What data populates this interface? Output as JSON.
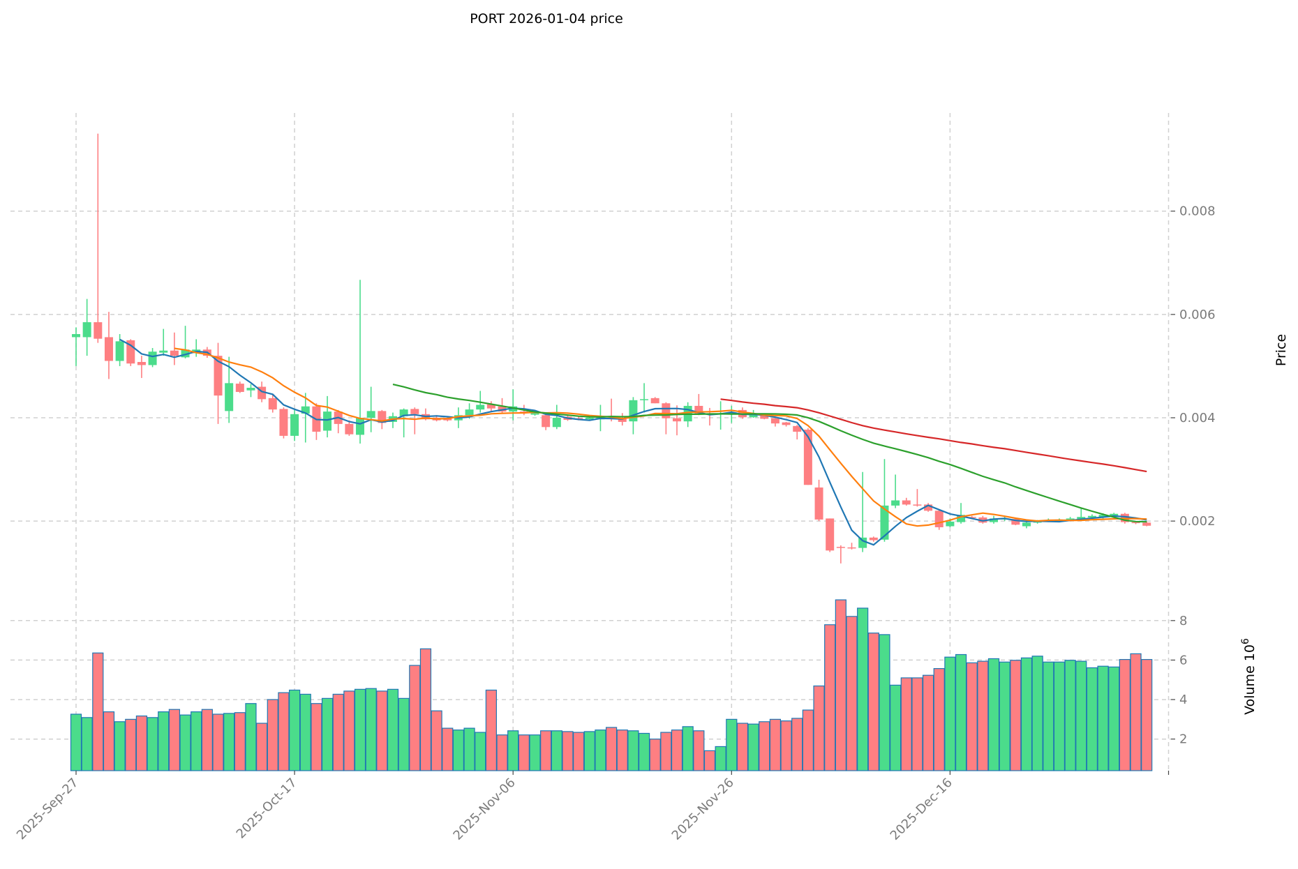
{
  "chart_data": {
    "type": "candlestick",
    "title": "PORT  2026-01-04  price",
    "ylabel": "Price",
    "volume_ylabel": "Volume  10",
    "volume_ylabel_exponent": "6",
    "start_date": "2025-09-27",
    "x_tick_labels": [
      "2025-Sep-27",
      "2025-Oct-17",
      "2025-Nov-06",
      "2025-Nov-26",
      "2025-Dec-16"
    ],
    "x_tick_day_offsets": [
      0,
      20,
      40,
      60,
      80,
      100
    ],
    "price_ticks": [
      "0.002",
      "0.004",
      "0.006",
      "0.008"
    ],
    "price_tick_values": [
      0.002,
      0.004,
      0.006,
      0.008
    ],
    "price_ylim": [
      0.0008,
      0.0099
    ],
    "volume_ticks": [
      "2",
      "4",
      "6",
      "8"
    ],
    "volume_tick_values": [
      2,
      4,
      6,
      8
    ],
    "volume_ylim": [
      0.4,
      9.9
    ],
    "volume_unit": "millions",
    "moving_averages": [
      {
        "window": 5,
        "color": "#1f77b4"
      },
      {
        "window": 10,
        "color": "#ff7f0e"
      },
      {
        "window": 30,
        "color": "#2ca02c"
      },
      {
        "window": 60,
        "color": "#d62728"
      }
    ],
    "colors": {
      "up": "#4bdc8b",
      "down": "#fe7f82",
      "volume_edge": "#1f77b4",
      "grid": "#d0d0d0"
    },
    "ohlc": [
      [
        0.00556,
        0.00575,
        0.005,
        0.00562
      ],
      [
        0.00556,
        0.0063,
        0.0052,
        0.00585
      ],
      [
        0.00585,
        0.0095,
        0.00545,
        0.00553
      ],
      [
        0.00556,
        0.00605,
        0.00475,
        0.0051
      ],
      [
        0.0051,
        0.00562,
        0.005,
        0.00548
      ],
      [
        0.0055,
        0.00552,
        0.005,
        0.00505
      ],
      [
        0.00508,
        0.0052,
        0.00477,
        0.00502
      ],
      [
        0.00502,
        0.00535,
        0.00498,
        0.00528
      ],
      [
        0.00526,
        0.00572,
        0.0052,
        0.0053
      ],
      [
        0.0053,
        0.00565,
        0.00502,
        0.0052
      ],
      [
        0.00517,
        0.00578,
        0.00515,
        0.00532
      ],
      [
        0.00525,
        0.00552,
        0.00518,
        0.00532
      ],
      [
        0.00532,
        0.00537,
        0.00516,
        0.0052
      ],
      [
        0.0052,
        0.00545,
        0.00388,
        0.00443
      ],
      [
        0.00413,
        0.00518,
        0.0039,
        0.00467
      ],
      [
        0.00466,
        0.0047,
        0.00448,
        0.0045
      ],
      [
        0.00453,
        0.00465,
        0.0044,
        0.00458
      ],
      [
        0.0046,
        0.0047,
        0.0043,
        0.00436
      ],
      [
        0.00438,
        0.00445,
        0.0041,
        0.00416
      ],
      [
        0.00417,
        0.0042,
        0.0036,
        0.00365
      ],
      [
        0.00365,
        0.00415,
        0.00355,
        0.00407
      ],
      [
        0.00408,
        0.00448,
        0.00352,
        0.00422
      ],
      [
        0.00422,
        0.00428,
        0.00357,
        0.00373
      ],
      [
        0.00375,
        0.00442,
        0.00362,
        0.00412
      ],
      [
        0.00412,
        0.00415,
        0.0037,
        0.00388
      ],
      [
        0.00388,
        0.00395,
        0.00365,
        0.00368
      ],
      [
        0.00367,
        0.00667,
        0.0035,
        0.004
      ],
      [
        0.004,
        0.0046,
        0.00372,
        0.00413
      ],
      [
        0.00413,
        0.00415,
        0.00378,
        0.0039
      ],
      [
        0.00392,
        0.0041,
        0.0038,
        0.00403
      ],
      [
        0.00403,
        0.00418,
        0.00362,
        0.00416
      ],
      [
        0.00417,
        0.0042,
        0.00368,
        0.00407
      ],
      [
        0.00407,
        0.00418,
        0.00395,
        0.00397
      ],
      [
        0.004,
        0.00405,
        0.00393,
        0.00395
      ],
      [
        0.004,
        0.00402,
        0.00393,
        0.00395
      ],
      [
        0.00395,
        0.0042,
        0.0038,
        0.00405
      ],
      [
        0.00405,
        0.00428,
        0.00398,
        0.00416
      ],
      [
        0.00416,
        0.00452,
        0.0041,
        0.00425
      ],
      [
        0.00426,
        0.00432,
        0.00412,
        0.00418
      ],
      [
        0.00422,
        0.00438,
        0.00408,
        0.00412
      ],
      [
        0.00412,
        0.00455,
        0.00395,
        0.00422
      ],
      [
        0.00412,
        0.00425,
        0.00405,
        0.00409
      ],
      [
        0.00406,
        0.00412,
        0.00404,
        0.00409
      ],
      [
        0.00405,
        0.00408,
        0.00376,
        0.00382
      ],
      [
        0.00382,
        0.00425,
        0.00378,
        0.004
      ],
      [
        0.00402,
        0.00404,
        0.00394,
        0.00396
      ],
      [
        0.00399,
        0.00402,
        0.00395,
        0.00397
      ],
      [
        0.00397,
        0.00402,
        0.00394,
        0.004
      ],
      [
        0.00397,
        0.00425,
        0.00374,
        0.00401
      ],
      [
        0.004,
        0.00437,
        0.00393,
        0.00398
      ],
      [
        0.00399,
        0.00409,
        0.00385,
        0.00392
      ],
      [
        0.00393,
        0.0044,
        0.00368,
        0.00434
      ],
      [
        0.00434,
        0.00467,
        0.0041,
        0.00436
      ],
      [
        0.00438,
        0.0044,
        0.00428,
        0.00428
      ],
      [
        0.00428,
        0.0043,
        0.00368,
        0.00399
      ],
      [
        0.00399,
        0.00424,
        0.00366,
        0.00393
      ],
      [
        0.00393,
        0.0043,
        0.00382,
        0.00423
      ],
      [
        0.00423,
        0.00446,
        0.00405,
        0.00408
      ],
      [
        0.00408,
        0.00419,
        0.00385,
        0.00406
      ],
      [
        0.00406,
        0.00432,
        0.00377,
        0.00408
      ],
      [
        0.00407,
        0.00423,
        0.0039,
        0.00409
      ],
      [
        0.00415,
        0.0042,
        0.00398,
        0.00401
      ],
      [
        0.00401,
        0.00415,
        0.004,
        0.00408
      ],
      [
        0.00407,
        0.00408,
        0.00397,
        0.00398
      ],
      [
        0.00399,
        0.004,
        0.00383,
        0.00389
      ],
      [
        0.00391,
        0.00392,
        0.00383,
        0.00386
      ],
      [
        0.00384,
        0.00386,
        0.00358,
        0.00373
      ],
      [
        0.00377,
        0.0038,
        0.0027,
        0.0027
      ],
      [
        0.00265,
        0.0028,
        0.002,
        0.00203
      ],
      [
        0.00205,
        0.00205,
        0.0014,
        0.00143
      ],
      [
        0.0015,
        0.00153,
        0.00118,
        0.00148
      ],
      [
        0.00149,
        0.00158,
        0.00145,
        0.00148
      ],
      [
        0.00148,
        0.00295,
        0.0014,
        0.00168
      ],
      [
        0.00168,
        0.0017,
        0.0016,
        0.00163
      ],
      [
        0.00164,
        0.0032,
        0.0016,
        0.0023
      ],
      [
        0.0023,
        0.0029,
        0.00225,
        0.0024
      ],
      [
        0.0024,
        0.00245,
        0.0023,
        0.00232
      ],
      [
        0.00232,
        0.00262,
        0.00228,
        0.0023
      ],
      [
        0.00232,
        0.00235,
        0.00218,
        0.0022
      ],
      [
        0.0022,
        0.00222,
        0.00183,
        0.00188
      ],
      [
        0.0019,
        0.00205,
        0.00188,
        0.00199
      ],
      [
        0.00198,
        0.00235,
        0.00195,
        0.00212
      ],
      [
        0.00208,
        0.0021,
        0.00204,
        0.00206
      ],
      [
        0.00207,
        0.0021,
        0.00195,
        0.00197
      ],
      [
        0.00198,
        0.0021,
        0.00195,
        0.00205
      ],
      [
        0.00203,
        0.00208,
        0.002,
        0.00205
      ],
      [
        0.00204,
        0.00206,
        0.00192,
        0.00193
      ],
      [
        0.0019,
        0.00199,
        0.00186,
        0.00197
      ],
      [
        0.00197,
        0.00202,
        0.00195,
        0.00199
      ],
      [
        0.00199,
        0.00205,
        0.00198,
        0.00202
      ],
      [
        0.002,
        0.00205,
        0.00198,
        0.00203
      ],
      [
        0.00202,
        0.00208,
        0.002,
        0.00205
      ],
      [
        0.00204,
        0.00225,
        0.00202,
        0.00208
      ],
      [
        0.00207,
        0.00213,
        0.00205,
        0.0021
      ],
      [
        0.00208,
        0.00215,
        0.00205,
        0.00212
      ],
      [
        0.0021,
        0.00216,
        0.00208,
        0.00214
      ],
      [
        0.00214,
        0.00216,
        0.00195,
        0.00198
      ],
      [
        0.00198,
        0.002,
        0.00194,
        0.00196
      ],
      [
        0.00197,
        0.00199,
        0.0019,
        0.00191
      ]
    ],
    "volume": [
      3.26,
      3.09,
      6.36,
      3.38,
      2.88,
      3.0,
      3.17,
      3.09,
      3.38,
      3.5,
      3.22,
      3.38,
      3.5,
      3.26,
      3.3,
      3.34,
      3.8,
      2.8,
      4.0,
      4.35,
      4.48,
      4.27,
      3.8,
      4.06,
      4.27,
      4.43,
      4.52,
      4.56,
      4.43,
      4.52,
      4.06,
      5.73,
      6.57,
      3.43,
      2.55,
      2.46,
      2.55,
      2.34,
      4.48,
      2.21,
      2.42,
      2.21,
      2.21,
      2.42,
      2.42,
      2.38,
      2.34,
      2.38,
      2.46,
      2.59,
      2.46,
      2.42,
      2.29,
      2.0,
      2.34,
      2.46,
      2.63,
      2.42,
      1.41,
      1.62,
      3.0,
      2.8,
      2.76,
      2.88,
      3.0,
      2.92,
      3.05,
      3.47,
      4.69,
      7.79,
      9.05,
      8.21,
      8.63,
      7.37,
      7.29,
      4.73,
      5.1,
      5.1,
      5.23,
      5.57,
      6.15,
      6.28,
      5.86,
      5.94,
      6.07,
      5.9,
      5.99,
      6.11,
      6.2,
      5.9,
      5.9,
      5.99,
      5.94,
      5.61,
      5.69,
      5.65,
      6.03,
      6.32,
      6.03
    ]
  }
}
